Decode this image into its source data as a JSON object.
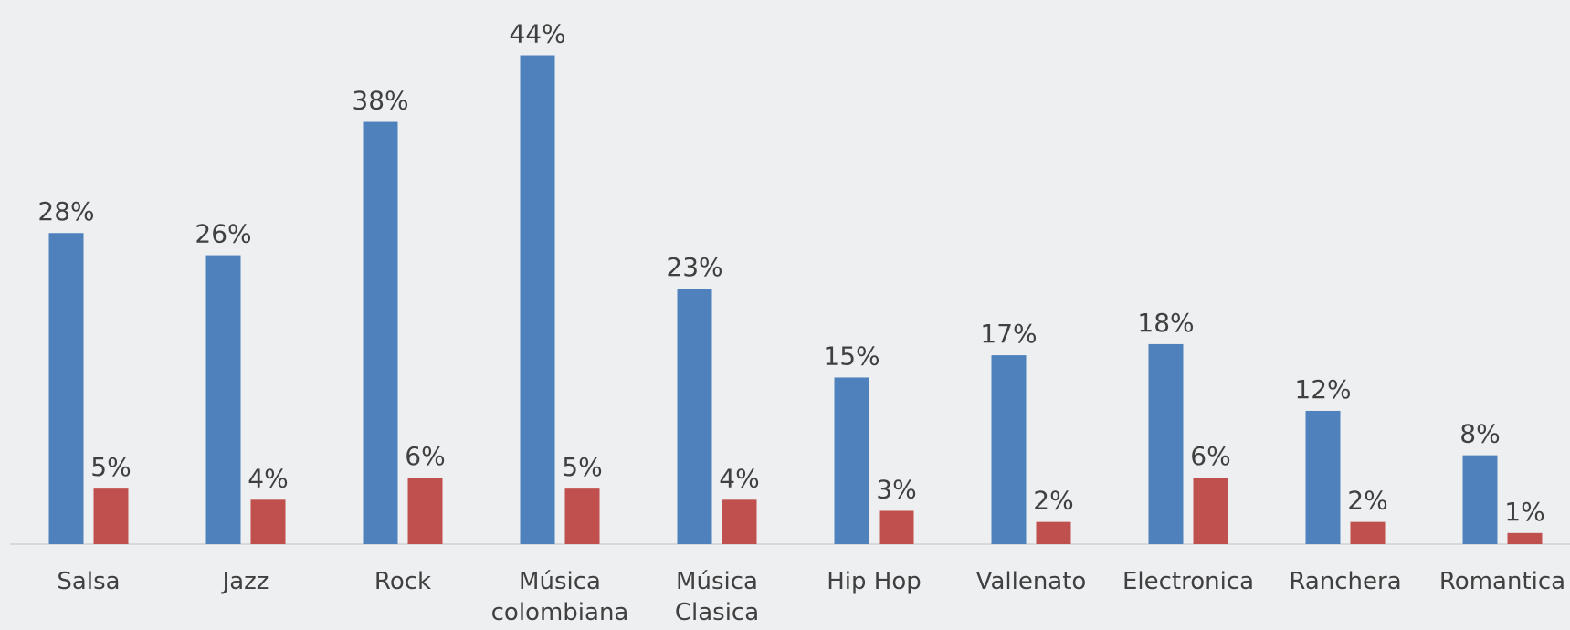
{
  "chart_data": {
    "type": "bar",
    "categories": [
      "Salsa",
      "Jazz",
      "Rock",
      "Música colombiana",
      "Música Clasica",
      "Hip Hop",
      "Vallenato",
      "Electronica",
      "Ranchera",
      "Romantica"
    ],
    "series": [
      {
        "color": "#4f81bd",
        "values": [
          28,
          26,
          38,
          44,
          23,
          15,
          17,
          18,
          12,
          8
        ],
        "value_labels": [
          "28%",
          "26%",
          "38%",
          "44%",
          "23%",
          "15%",
          "17%",
          "18%",
          "12%",
          "8%"
        ]
      },
      {
        "color": "#c0504d",
        "values": [
          5,
          4,
          6,
          5,
          4,
          3,
          2,
          6,
          2,
          1
        ],
        "value_labels": [
          "5%",
          "4%",
          "6%",
          "5%",
          "4%",
          "3%",
          "2%",
          "6%",
          "2%",
          "1%"
        ]
      }
    ]
  }
}
